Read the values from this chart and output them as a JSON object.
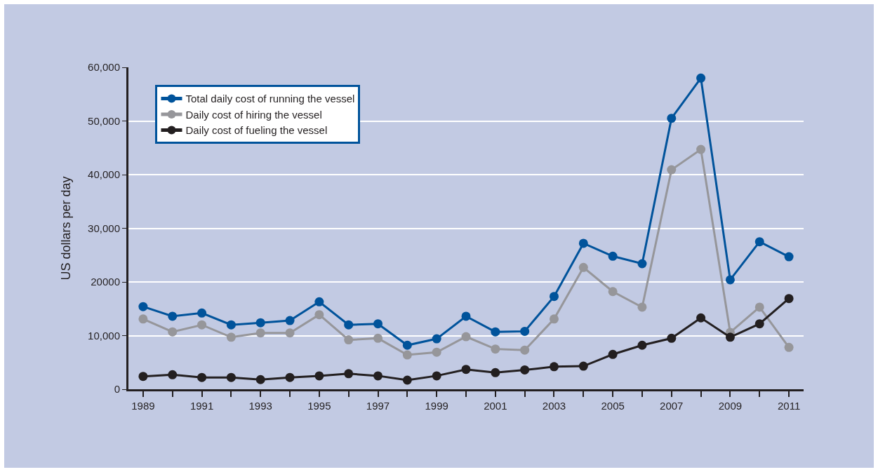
{
  "chart_data": {
    "type": "line",
    "ylabel": "US dollars per day",
    "x": [
      1989,
      1990,
      1991,
      1992,
      1993,
      1994,
      1995,
      1996,
      1997,
      1998,
      1999,
      2000,
      2001,
      2002,
      2003,
      2004,
      2005,
      2006,
      2007,
      2008,
      2009,
      2010,
      2011
    ],
    "series": [
      {
        "name": "Total daily cost of running the vessel",
        "color": "#00539b",
        "values": [
          15400,
          13600,
          14200,
          12000,
          12400,
          12800,
          16300,
          12000,
          12200,
          8200,
          9400,
          13600,
          10700,
          10800,
          17300,
          27200,
          24800,
          23400,
          50500,
          58000,
          20400,
          27500,
          24700
        ]
      },
      {
        "name": "Daily cost of hiring the vessel",
        "color": "#96969a",
        "values": [
          13100,
          10700,
          12000,
          9700,
          10500,
          10500,
          13900,
          9200,
          9500,
          6400,
          6900,
          9800,
          7500,
          7300,
          13100,
          22700,
          18200,
          15300,
          40900,
          44700,
          10600,
          15300,
          7800
        ]
      },
      {
        "name": "Daily cost of fueling the vessel",
        "color": "#231f20",
        "values": [
          2400,
          2700,
          2200,
          2200,
          1800,
          2200,
          2500,
          2900,
          2500,
          1700,
          2500,
          3700,
          3100,
          3600,
          4200,
          4300,
          6500,
          8200,
          9500,
          13300,
          9700,
          12200,
          16900
        ]
      }
    ],
    "xlim": [
      1988.5,
      2011.5
    ],
    "xticks": [
      1989,
      {
        "value": 1990,
        "label": null
      },
      1991,
      {
        "value": 1992,
        "label": null
      },
      1993,
      {
        "value": 1994,
        "label": null
      },
      1995,
      {
        "value": 1996,
        "label": null
      },
      1997,
      {
        "value": 1998,
        "label": null
      },
      1999,
      {
        "value": 2000,
        "label": null
      },
      2001,
      {
        "value": 2002,
        "label": null
      },
      2003,
      {
        "value": 2004,
        "label": null
      },
      2005,
      {
        "value": 2006,
        "label": null
      },
      2007,
      {
        "value": 2008,
        "label": null
      },
      2009,
      {
        "value": 2010,
        "label": null
      },
      2011
    ],
    "ylim": [
      0,
      60000
    ],
    "yticks": [
      0,
      {
        "value": 10000,
        "label": "10,000"
      },
      20000,
      {
        "value": 30000,
        "label": "30,000"
      },
      {
        "value": 40000,
        "label": "40,000"
      },
      {
        "value": 50000,
        "label": "50,000"
      },
      {
        "value": 60000,
        "label": "60,000"
      }
    ],
    "grid": "y",
    "legend": "top left",
    "marker": "circle",
    "line_style": "solid"
  }
}
